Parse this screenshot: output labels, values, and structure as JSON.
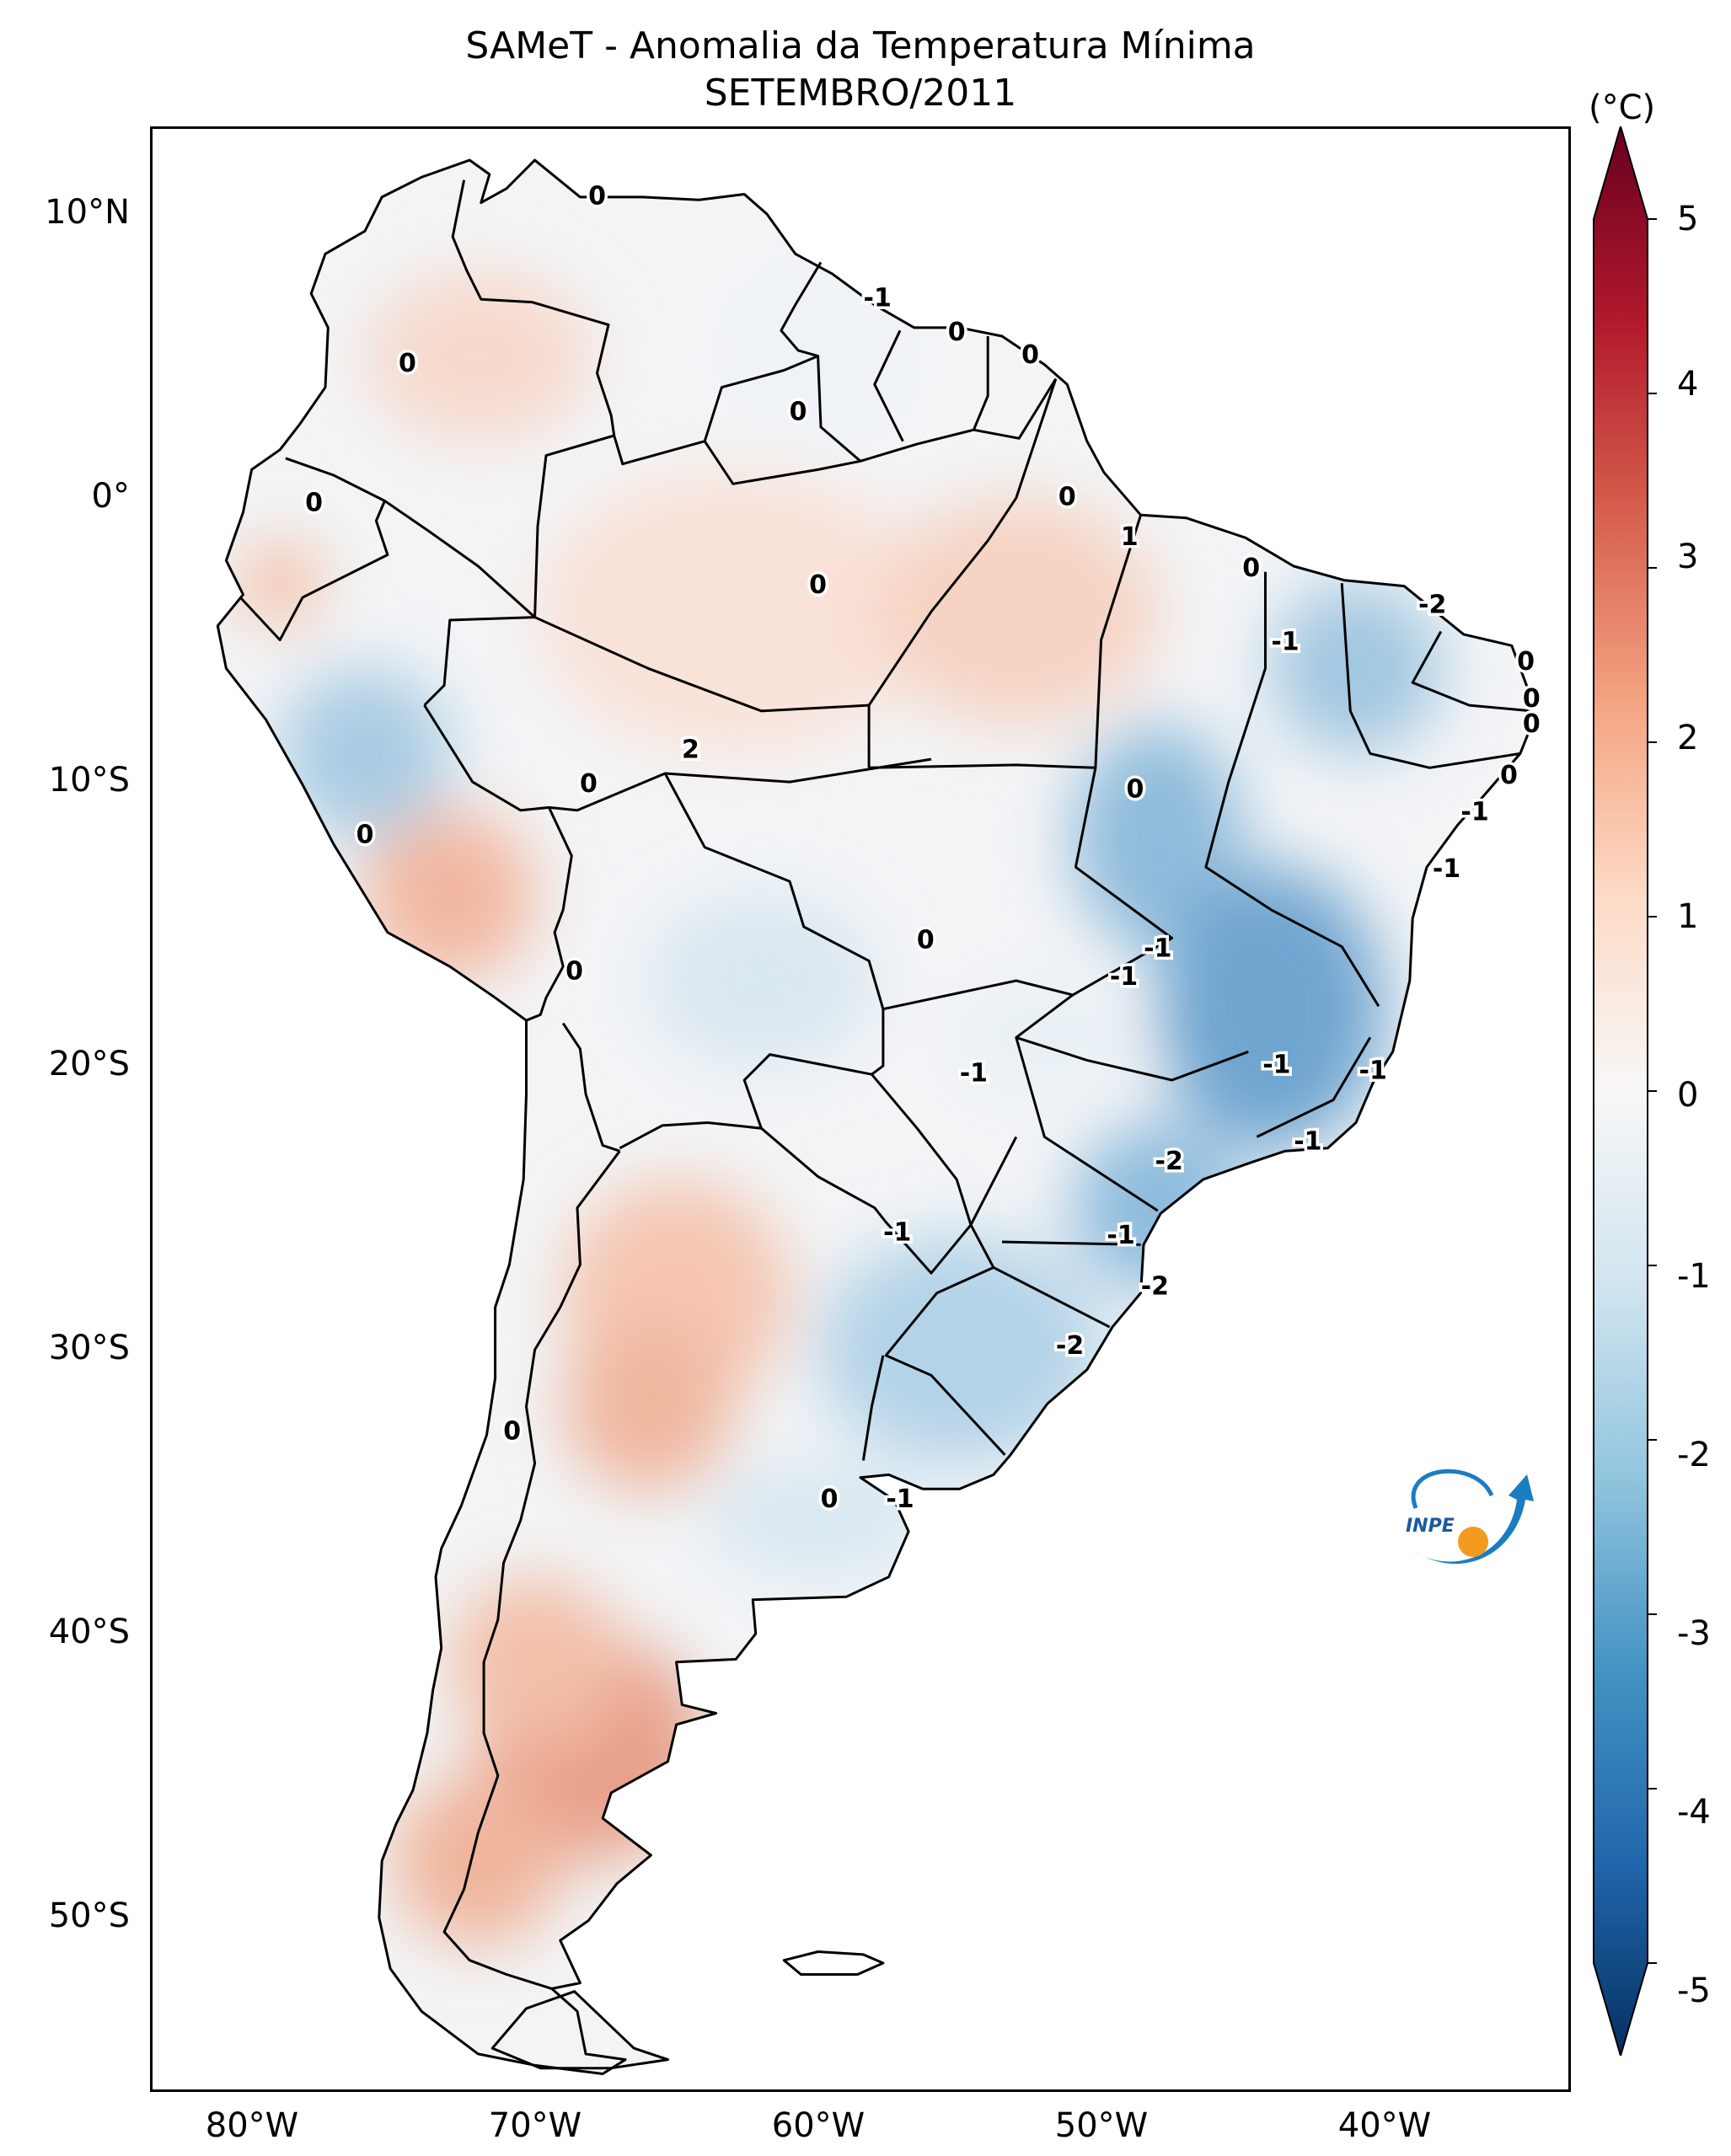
{
  "title": {
    "line1": "SAMeT - Anomalia da Temperatura Mínima",
    "line2": "SETEMBRO/2011"
  },
  "map": {
    "region": "South America",
    "variable": "Minimum temperature anomaly",
    "latitude_labels": [
      "10°N",
      "0°",
      "10°S",
      "20°S",
      "30°S",
      "40°S",
      "50°S"
    ],
    "longitude_labels": [
      "80°W",
      "70°W",
      "60°W",
      "50°W",
      "40°W"
    ],
    "contour_labels": [
      {
        "text": "0",
        "lon": -67.8,
        "lat": 10.6
      },
      {
        "text": "-1",
        "lon": -57.9,
        "lat": 7.0
      },
      {
        "text": "0",
        "lon": -55.1,
        "lat": 5.8
      },
      {
        "text": "0",
        "lon": -52.5,
        "lat": 5.0
      },
      {
        "text": "0",
        "lon": -74.5,
        "lat": 4.7
      },
      {
        "text": "0",
        "lon": -60.7,
        "lat": 3.0
      },
      {
        "text": "0",
        "lon": -77.8,
        "lat": -0.2
      },
      {
        "text": "0",
        "lon": -51.2,
        "lat": 0.0
      },
      {
        "text": "1",
        "lon": -49.0,
        "lat": -1.4
      },
      {
        "text": "0",
        "lon": -60.0,
        "lat": -3.1
      },
      {
        "text": "0",
        "lon": -44.7,
        "lat": -2.5
      },
      {
        "text": "-2",
        "lon": -38.3,
        "lat": -3.8
      },
      {
        "text": "-1",
        "lon": -43.5,
        "lat": -5.1
      },
      {
        "text": "0",
        "lon": -35.0,
        "lat": -5.8
      },
      {
        "text": "0",
        "lon": -34.8,
        "lat": -7.1
      },
      {
        "text": "0",
        "lon": -34.8,
        "lat": -8.0
      },
      {
        "text": "2",
        "lon": -64.5,
        "lat": -8.9
      },
      {
        "text": "0",
        "lon": -68.1,
        "lat": -10.1
      },
      {
        "text": "0",
        "lon": -48.8,
        "lat": -10.3
      },
      {
        "text": "0",
        "lon": -35.6,
        "lat": -9.8
      },
      {
        "text": "-1",
        "lon": -36.8,
        "lat": -11.1
      },
      {
        "text": "0",
        "lon": -76.0,
        "lat": -11.9
      },
      {
        "text": "-1",
        "lon": -37.8,
        "lat": -13.1
      },
      {
        "text": "0",
        "lon": -56.2,
        "lat": -15.6
      },
      {
        "text": "-1",
        "lon": -48.0,
        "lat": -15.9
      },
      {
        "text": "-1",
        "lon": -49.2,
        "lat": -16.9
      },
      {
        "text": "0",
        "lon": -68.6,
        "lat": -16.7
      },
      {
        "text": "-1",
        "lon": -54.5,
        "lat": -20.3
      },
      {
        "text": "-1",
        "lon": -43.8,
        "lat": -20.0
      },
      {
        "text": "-1",
        "lon": -40.4,
        "lat": -20.2
      },
      {
        "text": "-1",
        "lon": -42.7,
        "lat": -22.7
      },
      {
        "text": "-2",
        "lon": -47.6,
        "lat": -23.4
      },
      {
        "text": "-1",
        "lon": -57.2,
        "lat": -25.9
      },
      {
        "text": "-1",
        "lon": -49.3,
        "lat": -26.0
      },
      {
        "text": "-2",
        "lon": -48.1,
        "lat": -27.8
      },
      {
        "text": "-2",
        "lon": -51.1,
        "lat": -29.9
      },
      {
        "text": "0",
        "lon": -70.8,
        "lat": -32.9
      },
      {
        "text": "0",
        "lon": -59.6,
        "lat": -35.3
      },
      {
        "text": "-1",
        "lon": -57.1,
        "lat": -35.3
      }
    ]
  },
  "colorbar": {
    "unit_label": "(°C)",
    "tick_labels": [
      "5",
      "4",
      "3",
      "2",
      "1",
      "0",
      "-1",
      "-2",
      "-3",
      "-4",
      "-5"
    ],
    "colors": [
      "#67001f",
      "#b2182b",
      "#d6604d",
      "#f4a582",
      "#fddbc7",
      "#f7f7f7",
      "#d1e5f0",
      "#92c5de",
      "#4393c3",
      "#2166ac",
      "#053061"
    ]
  },
  "logo": {
    "text": "INPE"
  }
}
